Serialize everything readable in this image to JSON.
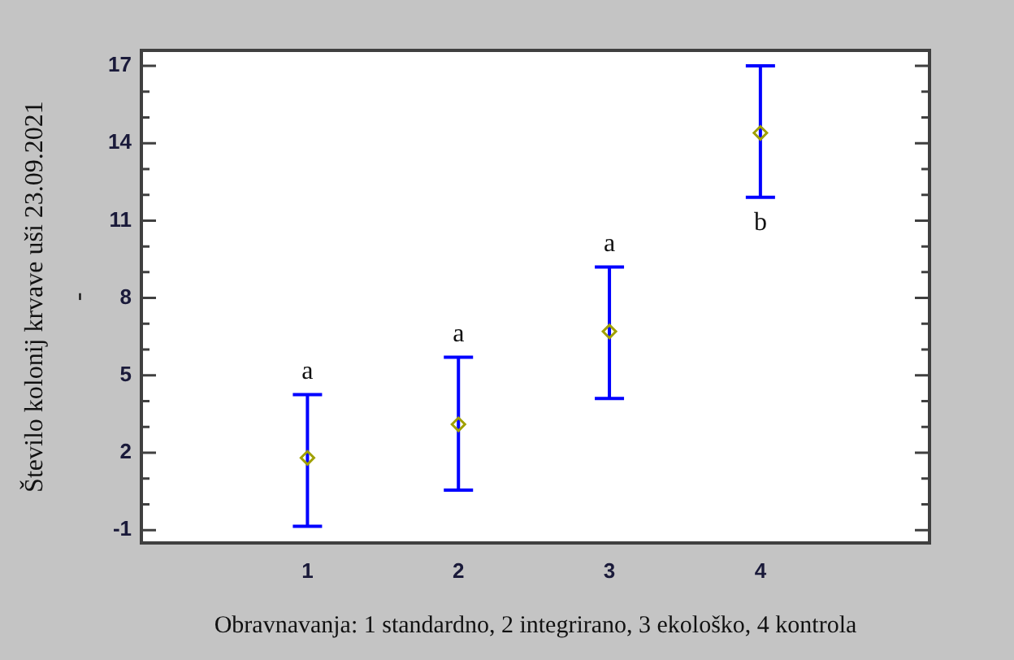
{
  "chart_data": {
    "type": "scatter",
    "xlabel": "Obravnavanja: 1 standardno, 2 integrirano, 3 ekološko, 4 kontrola",
    "ylabel": "Število kolonij krvave uši 23.09.2021\n-",
    "categories": [
      "1",
      "2",
      "3",
      "4"
    ],
    "series": [
      {
        "color": "#a0a000",
        "values": [
          1.8,
          3.1,
          6.7,
          14.4
        ],
        "errors": [
          [
            -0.85,
            4.25
          ],
          [
            0.55,
            5.7
          ],
          [
            4.1,
            9.2
          ],
          [
            11.9,
            17
          ]
        ]
      }
    ],
    "marker": "diamond",
    "ylim": [
      -1.5,
      17.6
    ],
    "yticks": [
      -1,
      {
        "value": 0,
        "label": null
      },
      {
        "value": 1,
        "label": null
      },
      2,
      {
        "value": 3,
        "label": null
      },
      {
        "value": 4,
        "label": null
      },
      5,
      {
        "value": 6,
        "label": null
      },
      {
        "value": 7,
        "label": null
      },
      8,
      {
        "value": 9,
        "label": null
      },
      {
        "value": 10,
        "label": null
      },
      11,
      {
        "value": 12,
        "label": null
      },
      {
        "value": 13,
        "label": null
      },
      14,
      {
        "value": 15,
        "label": null
      },
      {
        "value": 16,
        "label": null
      },
      17
    ],
    "annotations": [
      {
        "text": "a",
        "x": "1",
        "y": 4.25
      },
      {
        "text": "a",
        "x": "2",
        "y": 5.7
      },
      {
        "text": "a",
        "x": "3",
        "y": 9.2
      },
      {
        "text": "b",
        "x": "4",
        "y": 11.9
      }
    ]
  }
}
